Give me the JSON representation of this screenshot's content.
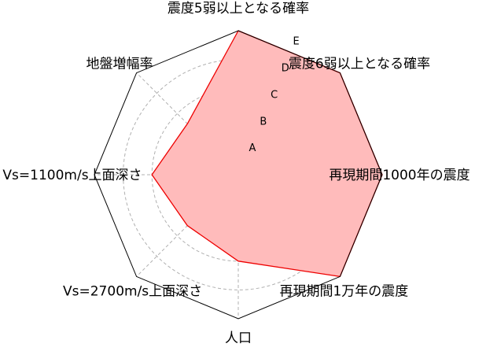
{
  "chart_data": {
    "type": "radar",
    "title": "",
    "axes": [
      "震度5弱以上となる確率",
      "震度6弱以上となる確率",
      "再現期間1000年の震度",
      "再現期間1万年の震度",
      "人口",
      "Vs=2700m/s上面深さ",
      "Vs=1100m/s上面深さ",
      "地盤増幅率"
    ],
    "tick_labels": [
      "A",
      "B",
      "C",
      "D",
      "E"
    ],
    "range": [
      0,
      5
    ],
    "grid": true,
    "series": [
      {
        "values": [
          5,
          5,
          5,
          5,
          3,
          2.5,
          3,
          2.5
        ],
        "fill_color": "#ffbbbb",
        "line_color": "#ee0000"
      }
    ],
    "frame_color": "#000000",
    "grid_color": "#b0b0b0"
  }
}
